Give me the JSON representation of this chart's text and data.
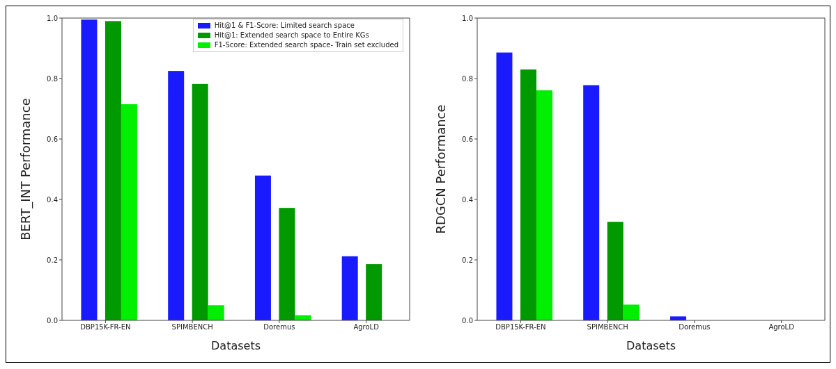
{
  "chart_data": [
    {
      "type": "bar",
      "ylabel": "BERT_INT Performance",
      "xlabel": "Datasets",
      "categories": [
        "DBP15K-FR-EN",
        "SPIMBENCH",
        "Doremus",
        "AgroLD"
      ],
      "series": [
        {
          "name": "Hit@1 & F1-Score: Limited search space",
          "color": "#1a1aff",
          "values": [
            0.995,
            0.825,
            0.479,
            0.212
          ]
        },
        {
          "name": "Hit@1: Extended search space to Entire KGs",
          "color": "#009900",
          "values": [
            0.99,
            0.782,
            0.372,
            0.186
          ]
        },
        {
          "name": "F1-Score: Extended search space- Train set excluded",
          "color": "#00ee00",
          "values": [
            0.715,
            0.05,
            0.017,
            0
          ]
        }
      ],
      "ylim": [
        0,
        1
      ],
      "yticks": [
        {
          "value": 0,
          "label": "0.0"
        },
        {
          "value": 0.2,
          "label": "0.2"
        },
        {
          "value": 0.4,
          "label": "0.4"
        },
        {
          "value": 0.6,
          "label": "0.6"
        },
        {
          "value": 0.8,
          "label": "0.8"
        },
        {
          "value": 1,
          "label": "1.0"
        }
      ],
      "legend": "top right"
    },
    {
      "type": "bar",
      "ylabel": "RDGCN Performance",
      "xlabel": "Datasets",
      "categories": [
        "DBP15K-FR-EN",
        "SPIMBENCH",
        "Doremus",
        "AgroLD"
      ],
      "series": [
        {
          "color": "#1a1aff",
          "values": [
            0.886,
            0.778,
            0.013,
            0
          ]
        },
        {
          "color": "#009900",
          "values": [
            0.83,
            0.326,
            0,
            0
          ]
        },
        {
          "color": "#00ee00",
          "values": [
            0.761,
            0.052,
            0,
            0
          ]
        }
      ],
      "ylim": [
        0,
        1
      ],
      "yticks": [
        {
          "value": 0,
          "label": "0.0"
        },
        {
          "value": 0.2,
          "label": "0.2"
        },
        {
          "value": 0.4,
          "label": "0.4"
        },
        {
          "value": 0.6,
          "label": "0.6"
        },
        {
          "value": 0.8,
          "label": "0.8"
        },
        {
          "value": 1,
          "label": "1.0"
        }
      ]
    }
  ]
}
